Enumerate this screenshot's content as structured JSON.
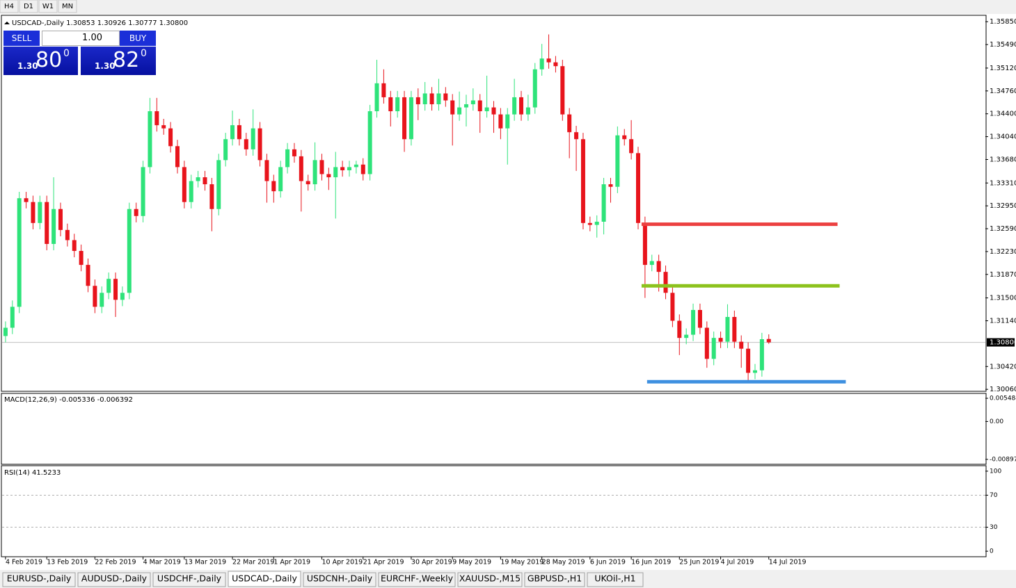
{
  "toolbar": [
    "H4",
    "D1",
    "W1",
    "MN"
  ],
  "trade_panel": {
    "sell": "SELL",
    "lots": "1.00",
    "buy": "BUY",
    "sell_big": "1.30",
    "sell_pips": "80",
    "sell_frac": "0",
    "buy_big": "1.30",
    "buy_pips": "82",
    "buy_frac": "0"
  },
  "tabs": [
    "EURUSD-,Daily",
    "AUDUSD-,Daily",
    "USDCHF-,Daily",
    "USDCAD-,Daily",
    "USDCNH-,Daily",
    "EURCHF-,Weekly",
    "XAUUSD-,M15",
    "GBPUSD-,H1",
    "UKOil-,H1"
  ],
  "active_tab": 3,
  "chart_data": {
    "type": "candlestick",
    "title": "USDCAD-,Daily  1.30853 1.30926 1.30777 1.30800",
    "up_color": "#2ee37a",
    "down_color": "#e8141c",
    "candles": [
      [
        1.309,
        1.3113,
        1.308,
        1.3103
      ],
      [
        1.3103,
        1.3146,
        1.3093,
        1.3136
      ],
      [
        1.3136,
        1.3317,
        1.3126,
        1.3307
      ],
      [
        1.3307,
        1.3317,
        1.3291,
        1.3301
      ],
      [
        1.3301,
        1.3311,
        1.3258,
        1.3268
      ],
      [
        1.3268,
        1.3311,
        1.3258,
        1.3301
      ],
      [
        1.3301,
        1.3311,
        1.3225,
        1.3235
      ],
      [
        1.3235,
        1.334,
        1.3225,
        1.329
      ],
      [
        1.329,
        1.33,
        1.3247,
        1.3257
      ],
      [
        1.3257,
        1.3267,
        1.3231,
        1.3241
      ],
      [
        1.3241,
        1.3251,
        1.3214,
        1.3224
      ],
      [
        1.3224,
        1.3234,
        1.3192,
        1.3202
      ],
      [
        1.3202,
        1.3212,
        1.3159,
        1.3169
      ],
      [
        1.3169,
        1.3179,
        1.3126,
        1.3136
      ],
      [
        1.3136,
        1.3168,
        1.3126,
        1.3158
      ],
      [
        1.3158,
        1.319,
        1.3148,
        1.318
      ],
      [
        1.318,
        1.319,
        1.312,
        1.3147
      ],
      [
        1.3147,
        1.3168,
        1.3137,
        1.3158
      ],
      [
        1.3158,
        1.33,
        1.3148,
        1.329
      ],
      [
        1.329,
        1.33,
        1.3269,
        1.3279
      ],
      [
        1.3279,
        1.3366,
        1.3269,
        1.3356
      ],
      [
        1.3356,
        1.3465,
        1.3346,
        1.3444
      ],
      [
        1.3444,
        1.3465,
        1.3412,
        1.3422
      ],
      [
        1.3422,
        1.3432,
        1.3407,
        1.3417
      ],
      [
        1.3417,
        1.3427,
        1.3379,
        1.3389
      ],
      [
        1.3389,
        1.3399,
        1.3346,
        1.3356
      ],
      [
        1.3356,
        1.3366,
        1.3291,
        1.3301
      ],
      [
        1.3301,
        1.3344,
        1.3291,
        1.3334
      ],
      [
        1.3334,
        1.335,
        1.3324,
        1.334
      ],
      [
        1.334,
        1.335,
        1.3319,
        1.3329
      ],
      [
        1.3329,
        1.3339,
        1.3255,
        1.329
      ],
      [
        1.329,
        1.3377,
        1.328,
        1.3367
      ],
      [
        1.3367,
        1.341,
        1.3357,
        1.34
      ],
      [
        1.34,
        1.3445,
        1.339,
        1.3422
      ],
      [
        1.3422,
        1.3432,
        1.339,
        1.34
      ],
      [
        1.34,
        1.341,
        1.3374,
        1.3384
      ],
      [
        1.3384,
        1.3447,
        1.3374,
        1.3417
      ],
      [
        1.3417,
        1.3427,
        1.3357,
        1.3367
      ],
      [
        1.3367,
        1.3377,
        1.33,
        1.3334
      ],
      [
        1.3334,
        1.3344,
        1.33,
        1.3318
      ],
      [
        1.3318,
        1.3366,
        1.3308,
        1.3356
      ],
      [
        1.3356,
        1.3394,
        1.3346,
        1.3384
      ],
      [
        1.3384,
        1.3394,
        1.3363,
        1.3373
      ],
      [
        1.3373,
        1.3383,
        1.3286,
        1.3334
      ],
      [
        1.3334,
        1.3344,
        1.3319,
        1.3329
      ],
      [
        1.3329,
        1.3395,
        1.3319,
        1.3367
      ],
      [
        1.3367,
        1.3377,
        1.3335,
        1.3345
      ],
      [
        1.3345,
        1.3355,
        1.332,
        1.334
      ],
      [
        1.334,
        1.338,
        1.3275,
        1.3356
      ],
      [
        1.3356,
        1.3366,
        1.3341,
        1.3351
      ],
      [
        1.3351,
        1.3366,
        1.3341,
        1.3356
      ],
      [
        1.3356,
        1.3366,
        1.3346,
        1.336
      ],
      [
        1.336,
        1.337,
        1.3335,
        1.3345
      ],
      [
        1.3345,
        1.3454,
        1.3335,
        1.3444
      ],
      [
        1.3444,
        1.3525,
        1.3434,
        1.3488
      ],
      [
        1.3488,
        1.351,
        1.3456,
        1.3466
      ],
      [
        1.3466,
        1.3476,
        1.342,
        1.3444
      ],
      [
        1.3444,
        1.3476,
        1.3434,
        1.3466
      ],
      [
        1.3466,
        1.3476,
        1.338,
        1.34
      ],
      [
        1.34,
        1.3476,
        1.339,
        1.3466
      ],
      [
        1.3466,
        1.348,
        1.343,
        1.3455
      ],
      [
        1.3455,
        1.349,
        1.3445,
        1.3472
      ],
      [
        1.3472,
        1.3482,
        1.3445,
        1.3455
      ],
      [
        1.3455,
        1.3495,
        1.3445,
        1.3472
      ],
      [
        1.3472,
        1.3482,
        1.3451,
        1.3461
      ],
      [
        1.3461,
        1.3471,
        1.339,
        1.3439
      ],
      [
        1.3439,
        1.3475,
        1.3429,
        1.345
      ],
      [
        1.345,
        1.347,
        1.342,
        1.3455
      ],
      [
        1.3455,
        1.348,
        1.3445,
        1.3461
      ],
      [
        1.3461,
        1.3471,
        1.341,
        1.3444
      ],
      [
        1.3444,
        1.35,
        1.3434,
        1.345
      ],
      [
        1.345,
        1.346,
        1.341,
        1.3439
      ],
      [
        1.3439,
        1.3449,
        1.34,
        1.3417
      ],
      [
        1.3417,
        1.3449,
        1.336,
        1.3439
      ],
      [
        1.3439,
        1.3495,
        1.3429,
        1.3466
      ],
      [
        1.3466,
        1.3476,
        1.3429,
        1.3439
      ],
      [
        1.3439,
        1.347,
        1.3429,
        1.345
      ],
      [
        1.345,
        1.352,
        1.344,
        1.351
      ],
      [
        1.351,
        1.355,
        1.35,
        1.3527
      ],
      [
        1.3527,
        1.3565,
        1.3511,
        1.3521
      ],
      [
        1.3521,
        1.3531,
        1.3505,
        1.3515
      ],
      [
        1.3515,
        1.3525,
        1.3429,
        1.3439
      ],
      [
        1.3439,
        1.3449,
        1.337,
        1.3411
      ],
      [
        1.3411,
        1.3421,
        1.335,
        1.34
      ],
      [
        1.34,
        1.341,
        1.3258,
        1.3268
      ],
      [
        1.3268,
        1.3278,
        1.3255,
        1.3265
      ],
      [
        1.3265,
        1.328,
        1.3245,
        1.327
      ],
      [
        1.327,
        1.3339,
        1.325,
        1.3329
      ],
      [
        1.3329,
        1.3339,
        1.33,
        1.3325
      ],
      [
        1.3325,
        1.342,
        1.3315,
        1.3406
      ],
      [
        1.3406,
        1.3416,
        1.339,
        1.34
      ],
      [
        1.34,
        1.343,
        1.3368,
        1.3378
      ],
      [
        1.3378,
        1.3388,
        1.3258,
        1.3268
      ],
      [
        1.3268,
        1.3278,
        1.315,
        1.3202
      ],
      [
        1.3202,
        1.3218,
        1.3192,
        1.3208
      ],
      [
        1.3208,
        1.3218,
        1.316,
        1.3191
      ],
      [
        1.3191,
        1.3201,
        1.3148,
        1.3158
      ],
      [
        1.3158,
        1.3168,
        1.3104,
        1.3114
      ],
      [
        1.3114,
        1.3124,
        1.306,
        1.3087
      ],
      [
        1.3087,
        1.3102,
        1.3077,
        1.3092
      ],
      [
        1.3092,
        1.3141,
        1.3082,
        1.3131
      ],
      [
        1.3131,
        1.3141,
        1.3093,
        1.3103
      ],
      [
        1.3103,
        1.3113,
        1.304,
        1.3054
      ],
      [
        1.3054,
        1.3097,
        1.3044,
        1.3087
      ],
      [
        1.3087,
        1.3097,
        1.3071,
        1.3081
      ],
      [
        1.3081,
        1.314,
        1.3071,
        1.312
      ],
      [
        1.312,
        1.313,
        1.3071,
        1.3081
      ],
      [
        1.3081,
        1.3091,
        1.304,
        1.307
      ],
      [
        1.307,
        1.308,
        1.302,
        1.3032
      ],
      [
        1.3032,
        1.3046,
        1.3022,
        1.3036
      ],
      [
        1.3036,
        1.3095,
        1.3026,
        1.3085
      ],
      [
        1.30853,
        1.30926,
        1.30777,
        1.308
      ]
    ],
    "ylim": [
      1.3004,
      1.3594
    ],
    "yticks": [
      {
        "value": 1.3585,
        "label": "1.35850"
      },
      {
        "value": 1.3549,
        "label": "1.35490"
      },
      {
        "value": 1.3512,
        "label": "1.35120"
      },
      {
        "value": 1.3476,
        "label": "1.34760"
      },
      {
        "value": 1.344,
        "label": "1.34400"
      },
      {
        "value": 1.3404,
        "label": "1.34040"
      },
      {
        "value": 1.3368,
        "label": "1.33680"
      },
      {
        "value": 1.3331,
        "label": "1.33310"
      },
      {
        "value": 1.3295,
        "label": "1.32950"
      },
      {
        "value": 1.3259,
        "label": "1.32590"
      },
      {
        "value": 1.3223,
        "label": "1.32230"
      },
      {
        "value": 1.3187,
        "label": "1.31870"
      },
      {
        "value": 1.315,
        "label": "1.31500"
      },
      {
        "value": 1.3114,
        "label": "1.31140"
      },
      {
        "value": 1.3042,
        "label": "1.30420"
      },
      {
        "value": 1.3006,
        "label": "1.30060"
      }
    ],
    "last_price": {
      "value": 1.308,
      "label": "1.30800"
    },
    "xlim": [
      -0.5,
      142.5
    ],
    "xticks": [
      {
        "value": 0,
        "label": "4 Feb 2019"
      },
      {
        "value": 6,
        "label": "13 Feb 2019"
      },
      {
        "value": 13,
        "label": "22 Feb 2019"
      },
      {
        "value": 20,
        "label": "4 Mar 2019"
      },
      {
        "value": 26,
        "label": "13 Mar 2019"
      },
      {
        "value": 33,
        "label": "22 Mar 2019"
      },
      {
        "value": 39,
        "label": "1 Apr 2019"
      },
      {
        "value": 46,
        "label": "10 Apr 2019"
      },
      {
        "value": 52,
        "label": "21 Apr 2019"
      },
      {
        "value": 59,
        "label": "30 Apr 2019"
      },
      {
        "value": 65,
        "label": "9 May 2019"
      },
      {
        "value": 72,
        "label": "19 May 2019"
      },
      {
        "value": 78,
        "label": "28 May 2019"
      },
      {
        "value": 85,
        "label": "6 Jun 2019"
      },
      {
        "value": 91,
        "label": "16 Jun 2019"
      },
      {
        "value": 98,
        "label": "25 Jun 2019"
      },
      {
        "value": 104,
        "label": "4 Jul 2019"
      },
      {
        "value": 111,
        "label": "14 Jul 2019"
      }
    ],
    "levels": [
      {
        "value": 1.3266,
        "color": "#ec4040",
        "x": [
          92.5,
          121
        ]
      },
      {
        "value": 1.3169,
        "color": "#8cc21c",
        "x": [
          92.5,
          121.3
        ]
      },
      {
        "value": 1.3018,
        "color": "#3d8fe0",
        "x": [
          93.3,
          122.2
        ]
      }
    ],
    "macd": {
      "title": "MACD(12,26,9) -0.005336 -0.006392",
      "ylim": [
        -0.00997,
        0.00648
      ],
      "yticks": [
        0.005484,
        {
          "value": 0,
          "label": "0.00"
        },
        -0.008973
      ]
    },
    "rsi": {
      "title": "RSI(14) 41.5233",
      "ylim": [
        -6,
        106
      ],
      "yticks": [
        100,
        70,
        30,
        0
      ]
    }
  }
}
